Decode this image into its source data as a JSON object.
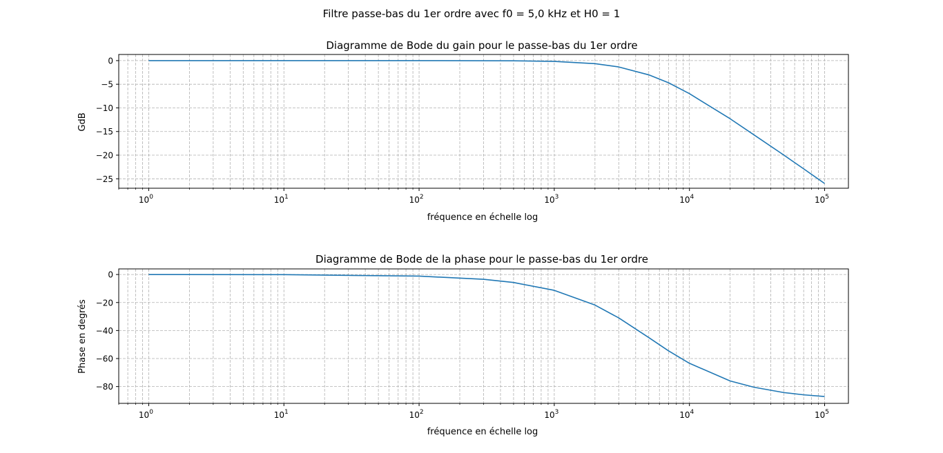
{
  "suptitle": "Filtre passe-bas du 1er ordre avec f0 = 5,0 kHz et H0 = 1",
  "colors": {
    "line": "#1f77b4",
    "grid": "#b0b0b0",
    "axes": "#000000",
    "background": "#ffffff"
  },
  "chart_data": [
    {
      "type": "line",
      "title": "Diagramme de Bode du gain pour le passe-bas du 1er ordre",
      "xlabel": "fréquence en échelle log",
      "ylabel": "GdB",
      "xscale": "log",
      "xlim": [
        0.6,
        150000
      ],
      "ylim": [
        -27,
        1.3
      ],
      "grid": "both",
      "x_tick_labels": [
        {
          "base": "10",
          "exp": "0"
        },
        {
          "base": "10",
          "exp": "1"
        },
        {
          "base": "10",
          "exp": "2"
        },
        {
          "base": "10",
          "exp": "3"
        },
        {
          "base": "10",
          "exp": "4"
        },
        {
          "base": "10",
          "exp": "5"
        }
      ],
      "y_ticks": [
        0,
        -5,
        -10,
        -15,
        -20,
        -25
      ],
      "y_tick_labels": [
        "0",
        "−5",
        "−10",
        "−15",
        "−20",
        "−25"
      ],
      "series": [
        {
          "x": [
            1,
            10,
            100,
            500,
            1000,
            2000,
            3000,
            5000,
            7000,
            10000,
            20000,
            30000,
            50000,
            70000,
            100000
          ],
          "y": [
            0,
            0,
            -0.002,
            -0.04,
            -0.17,
            -0.64,
            -1.34,
            -3.01,
            -4.68,
            -6.99,
            -12.3,
            -15.7,
            -20.0,
            -22.9,
            -26.0
          ]
        }
      ]
    },
    {
      "type": "line",
      "title": "Diagramme de Bode de la phase pour le passe-bas du 1er ordre",
      "xlabel": "fréquence en échelle log",
      "ylabel": "Phase en degrés",
      "xscale": "log",
      "xlim": [
        0.6,
        150000
      ],
      "ylim": [
        -92,
        4
      ],
      "grid": "both",
      "x_tick_labels": [
        {
          "base": "10",
          "exp": "0"
        },
        {
          "base": "10",
          "exp": "1"
        },
        {
          "base": "10",
          "exp": "2"
        },
        {
          "base": "10",
          "exp": "3"
        },
        {
          "base": "10",
          "exp": "4"
        },
        {
          "base": "10",
          "exp": "5"
        }
      ],
      "y_ticks": [
        0,
        -20,
        -40,
        -60,
        -80
      ],
      "y_tick_labels": [
        "0",
        "−20",
        "−40",
        "−60",
        "−80"
      ],
      "series": [
        {
          "x": [
            1,
            10,
            100,
            300,
            500,
            1000,
            2000,
            3000,
            5000,
            7000,
            10000,
            20000,
            30000,
            50000,
            70000,
            100000
          ],
          "y": [
            -0.01,
            -0.11,
            -1.15,
            -3.43,
            -5.71,
            -11.3,
            -21.8,
            -31.0,
            -45.0,
            -54.5,
            -63.4,
            -76.0,
            -80.5,
            -84.3,
            -85.9,
            -87.1
          ]
        }
      ]
    }
  ]
}
